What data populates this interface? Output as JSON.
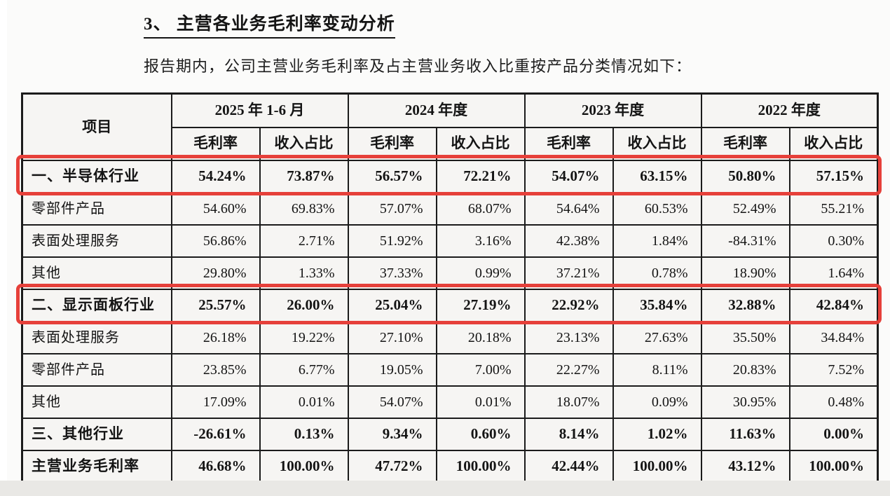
{
  "page": {
    "section_title": "3、 主营各业务毛利率变动分析",
    "intro": "报告期内，公司主营业务毛利率及占主营业务收入比重按产品分类情况如下："
  },
  "table": {
    "item_header": "项目",
    "period_groups": [
      "2025 年 1-6 月",
      "2024 年度",
      "2023 年度",
      "2022 年度"
    ],
    "sub_headers": [
      "毛利率",
      "收入占比"
    ],
    "rows": [
      {
        "label": "一、半导体行业",
        "bold": true,
        "highlighted": true,
        "values": [
          "54.24%",
          "73.87%",
          "56.57%",
          "72.21%",
          "54.07%",
          "63.15%",
          "50.80%",
          "57.15%"
        ]
      },
      {
        "label": "零部件产品",
        "bold": false,
        "highlighted": false,
        "values": [
          "54.60%",
          "69.83%",
          "57.07%",
          "68.07%",
          "54.64%",
          "60.53%",
          "52.49%",
          "55.21%"
        ]
      },
      {
        "label": "表面处理服务",
        "bold": false,
        "highlighted": false,
        "values": [
          "56.86%",
          "2.71%",
          "51.92%",
          "3.16%",
          "42.38%",
          "1.84%",
          "-84.31%",
          "0.30%"
        ]
      },
      {
        "label": "其他",
        "bold": false,
        "highlighted": false,
        "values": [
          "29.80%",
          "1.33%",
          "37.33%",
          "0.99%",
          "37.21%",
          "0.78%",
          "18.90%",
          "1.64%"
        ]
      },
      {
        "label": "二、显示面板行业",
        "bold": true,
        "highlighted": true,
        "values": [
          "25.57%",
          "26.00%",
          "25.04%",
          "27.19%",
          "22.92%",
          "35.84%",
          "32.88%",
          "42.84%"
        ]
      },
      {
        "label": "表面处理服务",
        "bold": false,
        "highlighted": false,
        "values": [
          "26.18%",
          "19.22%",
          "27.10%",
          "20.18%",
          "23.13%",
          "27.63%",
          "35.50%",
          "34.84%"
        ]
      },
      {
        "label": "零部件产品",
        "bold": false,
        "highlighted": false,
        "values": [
          "23.85%",
          "6.77%",
          "19.05%",
          "7.00%",
          "22.27%",
          "8.11%",
          "20.83%",
          "7.52%"
        ]
      },
      {
        "label": "其他",
        "bold": false,
        "highlighted": false,
        "values": [
          "17.09%",
          "0.01%",
          "54.07%",
          "0.01%",
          "18.07%",
          "0.09%",
          "30.95%",
          "0.48%"
        ]
      },
      {
        "label": "三、其他行业",
        "bold": true,
        "highlighted": false,
        "values": [
          "-26.61%",
          "0.13%",
          "9.34%",
          "0.60%",
          "8.14%",
          "1.02%",
          "11.63%",
          "0.00%"
        ]
      },
      {
        "label": "主营业务毛利率",
        "bold": true,
        "highlighted": false,
        "values": [
          "46.68%",
          "100.00%",
          "47.72%",
          "100.00%",
          "42.44%",
          "100.00%",
          "43.12%",
          "100.00%"
        ]
      }
    ]
  },
  "colors": {
    "highlight_border": "#e6403a",
    "table_border": "#1b1b1b",
    "cell_background": "#f6f5f3",
    "text": "#141414"
  }
}
